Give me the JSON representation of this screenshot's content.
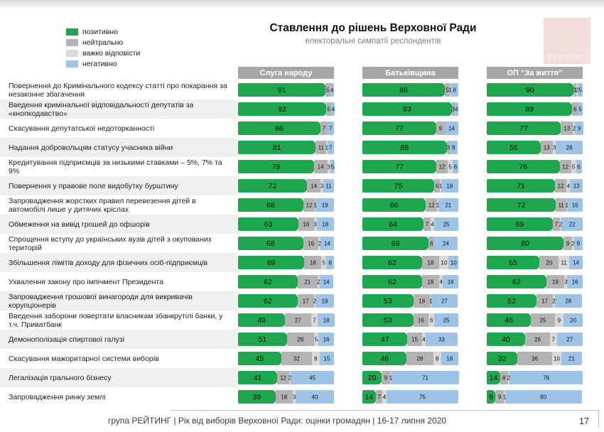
{
  "brand": {
    "logo_text": "РЕЙТИНГ"
  },
  "colors": {
    "pos": "#1fa750",
    "neu": "#b3b3b3",
    "dk": "#d9d9d9",
    "neg": "#9dc3e6",
    "column_header_bg": "#a6a6a6",
    "row_alt_bg": "#efefef",
    "logo_bg": "#f3dedb"
  },
  "footer": {
    "text": "група РЕЙТИНГ | Рік від виборів Верховної Ради: оцінки громадян | 16-17 липня 2020",
    "page": "17"
  },
  "chart_data": {
    "type": "bar",
    "variant": "horizontal_stacked_percent",
    "title": "Ставлення до рішень Верховної Ради",
    "subtitle": "електоральні симпатії респондентів",
    "unit": "%",
    "xlim": [
      0,
      100
    ],
    "legend": [
      {
        "key": "pos",
        "label": "позитивно"
      },
      {
        "key": "neu",
        "label": "нейтрально"
      },
      {
        "key": "dk",
        "label": "важко відповісти"
      },
      {
        "key": "neg",
        "label": "негативно"
      }
    ],
    "columns": [
      "Слуга народу",
      "Батьківщина",
      "ОП “За життя”"
    ],
    "rows": [
      {
        "label": "Повернення до Кримінального кодексу статті про покарання за незаконне збагачення",
        "bars": [
          [
            [
              91,
              "pos"
            ],
            [
              5,
              "neu"
            ],
            [
              4,
              "neg"
            ]
          ],
          [
            [
              86,
              "pos"
            ],
            [
              5,
              "neu"
            ],
            [
              1,
              "dk"
            ],
            [
              8,
              "neg"
            ]
          ],
          [
            [
              90,
              "pos"
            ],
            [
              3,
              "neu"
            ],
            [
              2,
              "dk"
            ],
            [
              5,
              "neg"
            ]
          ]
        ]
      },
      {
        "label": "Введення кримінальної відповідальності депутатів за «кнопкодавство»",
        "bars": [
          [
            [
              92,
              "pos"
            ],
            [
              5,
              "neu"
            ],
            [
              4,
              "neg"
            ]
          ],
          [
            [
              93,
              "pos"
            ],
            [
              3,
              "neu"
            ],
            [
              4,
              "neg"
            ]
          ],
          [
            [
              89,
              "pos"
            ],
            [
              6,
              "neu"
            ],
            [
              5,
              "neg"
            ]
          ]
        ]
      },
      {
        "label": "Скасування депутатської недоторканності",
        "bars": [
          [
            [
              86,
              "pos"
            ],
            [
              7,
              "neu"
            ],
            [
              7,
              "neg"
            ]
          ],
          [
            [
              77,
              "pos"
            ],
            [
              9,
              "neu"
            ],
            [
              14,
              "neg"
            ]
          ],
          [
            [
              77,
              "pos"
            ],
            [
              13,
              "neu"
            ],
            [
              2,
              "dk"
            ],
            [
              9,
              "neg"
            ]
          ]
        ]
      },
      {
        "label": "Надання добровольцям статусу учасника війни",
        "bars": [
          [
            [
              81,
              "pos"
            ],
            [
              11,
              "neu"
            ],
            [
              1,
              "dk"
            ],
            [
              7,
              "neg"
            ]
          ],
          [
            [
              88,
              "pos"
            ],
            [
              3,
              "neu"
            ],
            [
              8,
              "neg"
            ]
          ],
          [
            [
              56,
              "pos"
            ],
            [
              13,
              "neu"
            ],
            [
              3,
              "dk"
            ],
            [
              28,
              "neg"
            ]
          ]
        ]
      },
      {
        "label": "Кредитування підприємців за низькими ставками – 5%, 7% та 9%",
        "bars": [
          [
            [
              79,
              "pos"
            ],
            [
              14,
              "neu"
            ],
            [
              3,
              "dk"
            ],
            [
              5,
              "neg"
            ]
          ],
          [
            [
              77,
              "pos"
            ],
            [
              12,
              "neu"
            ],
            [
              5,
              "dk"
            ],
            [
              6,
              "neg"
            ]
          ],
          [
            [
              76,
              "pos"
            ],
            [
              12,
              "neu"
            ],
            [
              5,
              "dk"
            ],
            [
              6,
              "neg"
            ]
          ]
        ]
      },
      {
        "label": "Повернення у правове поле видобутку бурштину",
        "bars": [
          [
            [
              72,
              "pos"
            ],
            [
              14,
              "neu"
            ],
            [
              3,
              "dk"
            ],
            [
              11,
              "neg"
            ]
          ],
          [
            [
              75,
              "pos"
            ],
            [
              6,
              "neu"
            ],
            [
              1,
              "dk"
            ],
            [
              18,
              "neg"
            ]
          ],
          [
            [
              71,
              "pos"
            ],
            [
              12,
              "neu"
            ],
            [
              4,
              "dk"
            ],
            [
              13,
              "neg"
            ]
          ]
        ]
      },
      {
        "label": "Запровадження жорстких правил перевезення дітей в автомобілі лише у дитячих кріслах",
        "bars": [
          [
            [
              68,
              "pos"
            ],
            [
              12,
              "neu"
            ],
            [
              1,
              "dk"
            ],
            [
              19,
              "neg"
            ]
          ],
          [
            [
              66,
              "pos"
            ],
            [
              12,
              "neu"
            ],
            [
              1,
              "dk"
            ],
            [
              21,
              "neg"
            ]
          ],
          [
            [
              72,
              "pos"
            ],
            [
              11,
              "neu"
            ],
            [
              1,
              "dk"
            ],
            [
              16,
              "neg"
            ]
          ]
        ]
      },
      {
        "label": "Обмеження на вивід грошей до офшорів",
        "bars": [
          [
            [
              63,
              "pos"
            ],
            [
              16,
              "neu"
            ],
            [
              3,
              "dk"
            ],
            [
              18,
              "neg"
            ]
          ],
          [
            [
              64,
              "pos"
            ],
            [
              7,
              "neu"
            ],
            [
              4,
              "dk"
            ],
            [
              25,
              "neg"
            ]
          ],
          [
            [
              69,
              "pos"
            ],
            [
              7,
              "neu"
            ],
            [
              2,
              "dk"
            ],
            [
              22,
              "neg"
            ]
          ]
        ]
      },
      {
        "label": "Спрощення вступу до українських вузів дітей з окупованих територій",
        "bars": [
          [
            [
              68,
              "pos"
            ],
            [
              16,
              "neu"
            ],
            [
              2,
              "dk"
            ],
            [
              14,
              "neg"
            ]
          ],
          [
            [
              69,
              "pos"
            ],
            [
              6,
              "neu"
            ],
            [
              24,
              "neg"
            ]
          ],
          [
            [
              80,
              "pos"
            ],
            [
              9,
              "neu"
            ],
            [
              2,
              "dk"
            ],
            [
              9,
              "neg"
            ]
          ]
        ]
      },
      {
        "label": "Збільшення лімітів доходу для фізичних осіб-підприємців",
        "bars": [
          [
            [
              69,
              "pos"
            ],
            [
              18,
              "neu"
            ],
            [
              5,
              "dk"
            ],
            [
              8,
              "neg"
            ]
          ],
          [
            [
              62,
              "pos"
            ],
            [
              18,
              "neu"
            ],
            [
              10,
              "dk"
            ],
            [
              10,
              "neg"
            ]
          ],
          [
            [
              55,
              "pos"
            ],
            [
              20,
              "neu"
            ],
            [
              11,
              "dk"
            ],
            [
              14,
              "neg"
            ]
          ]
        ]
      },
      {
        "label": "Ухвалення закону про імпічмент Президента",
        "bars": [
          [
            [
              62,
              "pos"
            ],
            [
              21,
              "neu"
            ],
            [
              2,
              "dk"
            ],
            [
              14,
              "neg"
            ]
          ],
          [
            [
              62,
              "pos"
            ],
            [
              18,
              "neu"
            ],
            [
              4,
              "dk"
            ],
            [
              16,
              "neg"
            ]
          ],
          [
            [
              62,
              "pos"
            ],
            [
              19,
              "neu"
            ],
            [
              3,
              "dk"
            ],
            [
              16,
              "neg"
            ]
          ]
        ]
      },
      {
        "label": "Запровадження грошової винагороди для викривачів корупціонерів",
        "bars": [
          [
            [
              62,
              "pos"
            ],
            [
              17,
              "neu"
            ],
            [
              2,
              "dk"
            ],
            [
              19,
              "neg"
            ]
          ],
          [
            [
              53,
              "pos"
            ],
            [
              18,
              "neu"
            ],
            [
              1,
              "dk"
            ],
            [
              27,
              "neg"
            ]
          ],
          [
            [
              52,
              "pos"
            ],
            [
              17,
              "neu"
            ],
            [
              2,
              "dk"
            ],
            [
              28,
              "neg"
            ]
          ]
        ]
      },
      {
        "label": "Введення заборони повертати власникам збанкрутілі банки, у т.ч. Приватбанк",
        "bars": [
          [
            [
              49,
              "pos"
            ],
            [
              27,
              "neu"
            ],
            [
              7,
              "dk"
            ],
            [
              18,
              "neg"
            ]
          ],
          [
            [
              53,
              "pos"
            ],
            [
              16,
              "neu"
            ],
            [
              6,
              "dk"
            ],
            [
              25,
              "neg"
            ]
          ],
          [
            [
              46,
              "pos"
            ],
            [
              25,
              "neu"
            ],
            [
              9,
              "dk"
            ],
            [
              20,
              "neg"
            ]
          ]
        ]
      },
      {
        "label": "Демонополізація спиртової галузі",
        "bars": [
          [
            [
              51,
              "pos"
            ],
            [
              28,
              "neu"
            ],
            [
              5,
              "dk"
            ],
            [
              16,
              "neg"
            ]
          ],
          [
            [
              47,
              "pos"
            ],
            [
              15,
              "neu"
            ],
            [
              4,
              "dk"
            ],
            [
              33,
              "neg"
            ]
          ],
          [
            [
              40,
              "pos"
            ],
            [
              26,
              "neu"
            ],
            [
              7,
              "dk"
            ],
            [
              27,
              "neg"
            ]
          ]
        ]
      },
      {
        "label": "Скасування мажоритарної системи виборів",
        "bars": [
          [
            [
              45,
              "pos"
            ],
            [
              32,
              "neu"
            ],
            [
              8,
              "dk"
            ],
            [
              15,
              "neg"
            ]
          ],
          [
            [
              46,
              "pos"
            ],
            [
              28,
              "neu"
            ],
            [
              8,
              "dk"
            ],
            [
              18,
              "neg"
            ]
          ],
          [
            [
              32,
              "pos"
            ],
            [
              36,
              "neu"
            ],
            [
              10,
              "dk"
            ],
            [
              21,
              "neg"
            ]
          ]
        ]
      },
      {
        "label": "Легалізація грального бізнесу",
        "bars": [
          [
            [
              41,
              "pos"
            ],
            [
              12,
              "neu"
            ],
            [
              2,
              "dk"
            ],
            [
              45,
              "neg"
            ]
          ],
          [
            [
              20,
              "pos"
            ],
            [
              9,
              "neu"
            ],
            [
              1,
              "dk"
            ],
            [
              71,
              "neg"
            ]
          ],
          [
            [
              14,
              "pos"
            ],
            [
              8,
              "neu"
            ],
            [
              2,
              "dk"
            ],
            [
              76,
              "neg"
            ]
          ]
        ]
      },
      {
        "label": "Запровадження ринку землі",
        "bars": [
          [
            [
              39,
              "pos"
            ],
            [
              18,
              "neu"
            ],
            [
              3,
              "dk"
            ],
            [
              40,
              "neg"
            ]
          ],
          [
            [
              14,
              "pos"
            ],
            [
              7,
              "neu"
            ],
            [
              4,
              "dk"
            ],
            [
              75,
              "neg"
            ]
          ],
          [
            [
              9,
              "pos"
            ],
            [
              9,
              "neu"
            ],
            [
              1,
              "dk"
            ],
            [
              80,
              "neg"
            ]
          ]
        ]
      }
    ]
  }
}
